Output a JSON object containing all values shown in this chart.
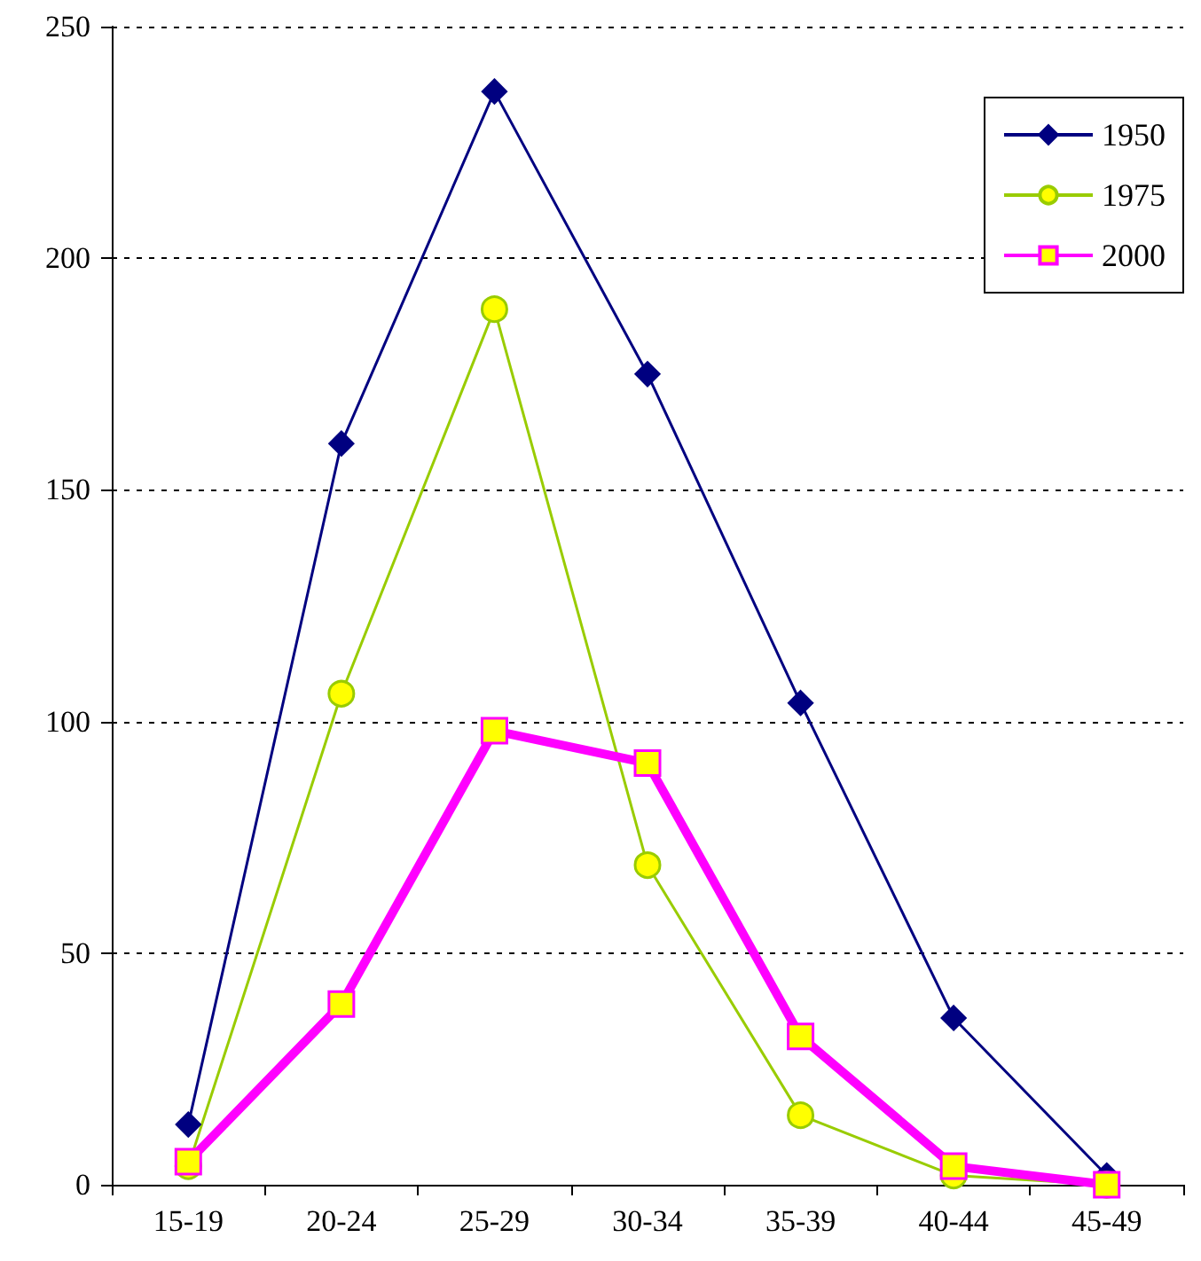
{
  "chart_data": {
    "type": "line",
    "categories": [
      "15-19",
      "20-24",
      "25-29",
      "30-34",
      "35-39",
      "40-44",
      "45-49"
    ],
    "series": [
      {
        "name": "1950",
        "color": "#000080",
        "marker": "diamond",
        "values": [
          13,
          160,
          236,
          175,
          104,
          36,
          2
        ]
      },
      {
        "name": "1975",
        "color": "#99cc00",
        "marker": "circle",
        "values": [
          4,
          106,
          189,
          69,
          15,
          2,
          0
        ]
      },
      {
        "name": "2000",
        "color": "#ff00ff",
        "marker": "square",
        "values": [
          5,
          39,
          98,
          91,
          32,
          4,
          0
        ]
      }
    ],
    "ylim": [
      0,
      250
    ],
    "yticks": [
      0,
      50,
      100,
      150,
      200,
      250
    ],
    "grid": "y",
    "legend": "top right"
  }
}
